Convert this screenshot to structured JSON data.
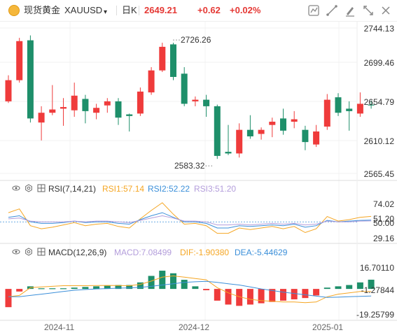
{
  "header": {
    "product_name": "现货黄金",
    "symbol": "XAUUSD",
    "interval": "日K",
    "price": "2649.21",
    "change": "+0.62",
    "change_pct": "+0.02%",
    "colors": {
      "up": "#f03a3a",
      "down": "#f03a3a"
    },
    "tools": [
      "line-tool-icon",
      "draw-tool-icon",
      "pen-tool-icon",
      "fullscreen-icon",
      "close-icon"
    ]
  },
  "rsi_panel": {
    "title": "RSI(7,14,21)",
    "rsi1": "RSI1:57.14",
    "rsi2": "RSI2:52.22",
    "rsi3": "RSI3:51.20",
    "colors": {
      "rsi1": "#f5a623",
      "rsi2": "#3b8fd9",
      "rsi3": "#b39ddb"
    }
  },
  "macd_panel": {
    "title": "MACD(12,26,9)",
    "macd": "MACD:7.08499",
    "dif": "DIF:-1.90380",
    "dea": "DEA:-5.44629",
    "colors": {
      "macd": "#b39ddb",
      "dif": "#f5a623",
      "dea": "#3b8fd9"
    }
  },
  "chart_data": [
    {
      "type": "candlestick",
      "y_ticks": [
        "2744.13",
        "2699.46",
        "2654.79",
        "2610.12",
        "2565.45"
      ],
      "ylim": [
        2565.45,
        2744.13
      ],
      "annotations": {
        "high": "2726.26",
        "low": "2583.32"
      },
      "x_ticks": [
        "2024-11",
        "2024-12",
        "2025-01"
      ],
      "colors": {
        "up": "#ef3b3b",
        "down": "#1e8f6a"
      },
      "candles": [
        {
          "o": 2654,
          "h": 2686,
          "l": 2652,
          "c": 2680
        },
        {
          "o": 2680,
          "h": 2732,
          "l": 2677,
          "c": 2728
        },
        {
          "o": 2729,
          "h": 2735,
          "l": 2628,
          "c": 2633
        },
        {
          "o": 2628,
          "h": 2648,
          "l": 2606,
          "c": 2640
        },
        {
          "o": 2640,
          "h": 2674,
          "l": 2637,
          "c": 2644
        },
        {
          "o": 2645,
          "h": 2658,
          "l": 2624,
          "c": 2647
        },
        {
          "o": 2643,
          "h": 2677,
          "l": 2635,
          "c": 2661
        },
        {
          "o": 2657,
          "h": 2662,
          "l": 2627,
          "c": 2642
        },
        {
          "o": 2640,
          "h": 2651,
          "l": 2632,
          "c": 2646
        },
        {
          "o": 2649,
          "h": 2658,
          "l": 2640,
          "c": 2654
        },
        {
          "o": 2654,
          "h": 2658,
          "l": 2625,
          "c": 2634
        },
        {
          "o": 2638,
          "h": 2639,
          "l": 2617,
          "c": 2636
        },
        {
          "o": 2639,
          "h": 2671,
          "l": 2636,
          "c": 2666
        },
        {
          "o": 2665,
          "h": 2696,
          "l": 2662,
          "c": 2692
        },
        {
          "o": 2692,
          "h": 2726,
          "l": 2690,
          "c": 2721
        },
        {
          "o": 2724,
          "h": 2726,
          "l": 2680,
          "c": 2684
        },
        {
          "o": 2688,
          "h": 2696,
          "l": 2648,
          "c": 2651
        },
        {
          "o": 2654,
          "h": 2660,
          "l": 2648,
          "c": 2656
        },
        {
          "o": 2656,
          "h": 2662,
          "l": 2635,
          "c": 2648
        },
        {
          "o": 2648,
          "h": 2650,
          "l": 2583.32,
          "c": 2587
        },
        {
          "o": 2592,
          "h": 2625,
          "l": 2588,
          "c": 2590
        },
        {
          "o": 2590,
          "h": 2627,
          "l": 2585,
          "c": 2619
        },
        {
          "o": 2619,
          "h": 2637,
          "l": 2608,
          "c": 2611
        },
        {
          "o": 2614,
          "h": 2622,
          "l": 2607,
          "c": 2619
        },
        {
          "o": 2625,
          "h": 2634,
          "l": 2610,
          "c": 2629
        },
        {
          "o": 2633,
          "h": 2645,
          "l": 2613,
          "c": 2618
        },
        {
          "o": 2629,
          "h": 2642,
          "l": 2621,
          "c": 2632
        },
        {
          "o": 2619,
          "h": 2624,
          "l": 2594,
          "c": 2604
        },
        {
          "o": 2601,
          "h": 2625,
          "l": 2598,
          "c": 2617
        },
        {
          "o": 2623,
          "h": 2663,
          "l": 2619,
          "c": 2656
        },
        {
          "o": 2659,
          "h": 2664,
          "l": 2636,
          "c": 2640
        },
        {
          "o": 2645,
          "h": 2654,
          "l": 2618,
          "c": 2642
        },
        {
          "o": 2639,
          "h": 2665,
          "l": 2635,
          "c": 2651
        },
        {
          "o": 2650,
          "h": 2655,
          "l": 2645,
          "c": 2649.21
        }
      ]
    },
    {
      "type": "line",
      "name": "RSI",
      "y_ticks": [
        "74.02",
        "51.20",
        "50.00",
        "29.16"
      ],
      "ylim": [
        29.16,
        74.02
      ],
      "series": [
        {
          "name": "RSI1",
          "color": "#f5a623",
          "values": [
            62,
            67,
            45,
            41,
            43,
            46,
            49,
            45,
            47,
            48,
            44,
            42,
            54,
            65,
            75,
            60,
            47,
            48,
            45,
            35,
            35,
            42,
            40,
            42,
            44,
            41,
            44,
            36,
            41,
            57,
            51,
            53,
            56,
            57.14
          ]
        },
        {
          "name": "RSI2",
          "color": "#3b8fd9",
          "values": [
            56,
            58,
            50,
            48,
            48,
            49,
            51,
            49,
            50,
            50,
            48,
            47,
            53,
            58,
            62,
            56,
            50,
            50,
            48,
            42,
            42,
            45,
            44,
            45,
            46,
            45,
            47,
            43,
            45,
            52,
            50,
            51,
            52,
            52.22
          ]
        },
        {
          "name": "RSI3",
          "color": "#b39ddb",
          "values": [
            54,
            55,
            51,
            50,
            50,
            50,
            51,
            50,
            51,
            51,
            50,
            49,
            52,
            55,
            58,
            55,
            51,
            51,
            50,
            46,
            46,
            47,
            46,
            47,
            48,
            47,
            48,
            46,
            47,
            51,
            50,
            50,
            51,
            51.2
          ]
        }
      ]
    },
    {
      "type": "bar+line",
      "name": "MACD",
      "y_ticks": [
        "16.70110",
        "-1.27844",
        "-19.25799"
      ],
      "ylim": [
        -19.25799,
        16.7011
      ],
      "colors": {
        "positive": "#1e8f6a",
        "negative": "#ef3b3b"
      },
      "histogram": [
        -14,
        -2,
        2,
        0.5,
        0.5,
        0.5,
        1,
        1.5,
        2,
        2.5,
        3,
        3,
        5,
        10,
        14,
        12,
        7,
        2,
        -1,
        -9,
        -12,
        -13,
        -12,
        -11,
        -10,
        -9,
        -8,
        -7,
        -5,
        1,
        2,
        3,
        5,
        7.08499
      ],
      "series": [
        {
          "name": "DIF",
          "color": "#f5a623",
          "values": [
            -6,
            -5,
            1,
            1.5,
            2,
            2.5,
            2.5,
            2.5,
            2.6,
            2.7,
            2.6,
            2.5,
            3.5,
            6,
            9,
            10,
            9,
            8,
            7,
            1,
            -3,
            -6,
            -8,
            -9,
            -9.5,
            -10,
            -10,
            -10.5,
            -10,
            -6,
            -4,
            -3,
            -2,
            -1.9038
          ]
        },
        {
          "name": "DEA",
          "color": "#3b8fd9",
          "values": [
            -6,
            -6,
            -5,
            -4,
            -3,
            -2,
            -1,
            -0.5,
            0,
            0.3,
            0.6,
            0.8,
            1.2,
            2,
            3,
            4,
            5,
            5.5,
            5.8,
            5,
            4,
            3,
            1.5,
            0,
            -1.2,
            -2.5,
            -3.5,
            -4.5,
            -5.5,
            -6.5,
            -6.3,
            -6,
            -5.7,
            -5.44629
          ]
        }
      ]
    }
  ]
}
